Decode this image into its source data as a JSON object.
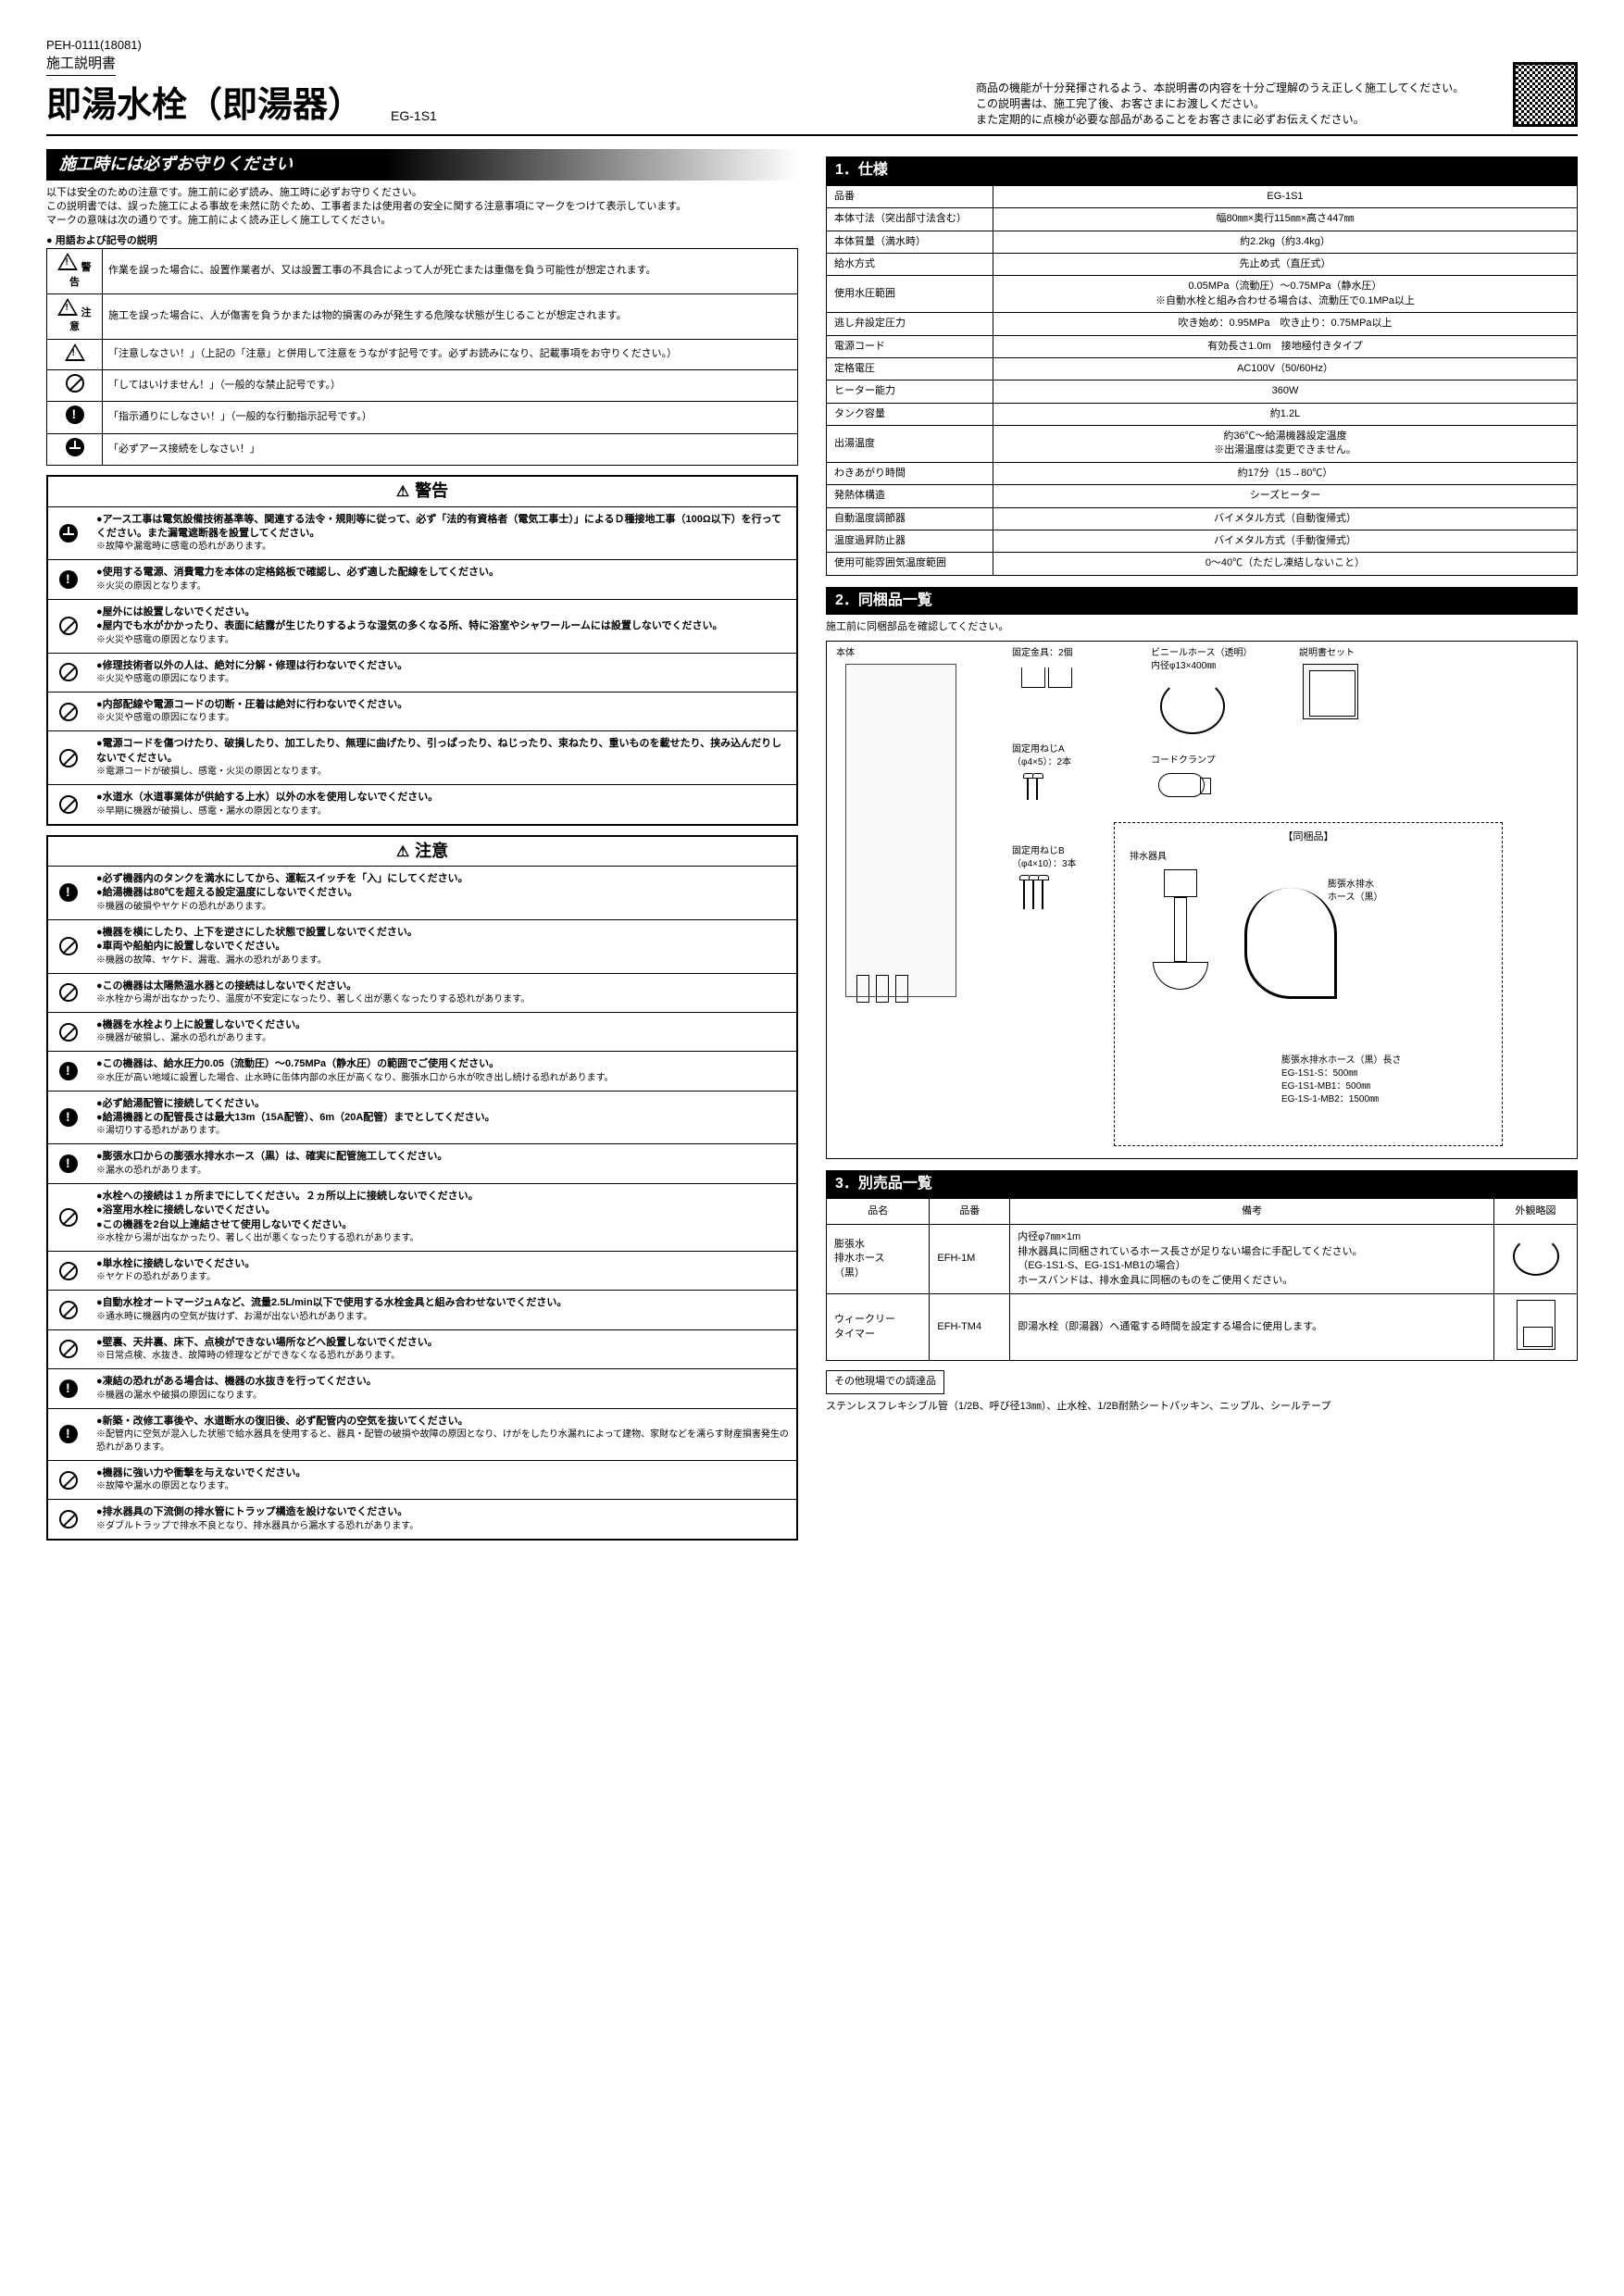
{
  "doc_code": "PEH-0111(18081)",
  "doc_type": "施工説明書",
  "title": "即湯水栓（即湯器）",
  "model": "EG-1S1",
  "header_note_lines": [
    "商品の機能が十分発揮されるよう、本説明書の内容を十分ご理解のうえ正しく施工してください。",
    "この説明書は、施工完了後、お客さまにお渡しください。",
    "また定期的に点検が必要な部品があることをお客さまに必ずお伝えください。"
  ],
  "precautions_heading": "施工時には必ずお守りください",
  "precautions_intro": [
    "以下は安全のための注意です。施工前に必ず読み、施工時に必ずお守りください。",
    "この説明書では、誤った施工による事故を未然に防ぐため、工事者または使用者の安全に関する注意事項にマークをつけて表示しています。",
    "マークの意味は次の通りです。施工前によく読み正しく施工してください。"
  ],
  "symbol_heading": "● 用語および記号の説明",
  "symbols": [
    {
      "icon": "warn-tri",
      "label": "警告",
      "desc": "作業を誤った場合に、設置作業者が、又は設置工事の不具合によって人が死亡または重傷を負う可能性が想定されます。"
    },
    {
      "icon": "caution-tri",
      "label": "注意",
      "desc": "施工を誤った場合に、人が傷害を負うかまたは物的損害のみが発生する危険な状態が生じることが想定されます。"
    },
    {
      "icon": "tri",
      "label": "",
      "desc": "「注意しなさい！」（上記の「注意」と併用して注意をうながす記号です。必ずお読みになり、記載事項をお守りください。）"
    },
    {
      "icon": "slash",
      "label": "",
      "desc": "「してはいけません！」（一般的な禁止記号です。）"
    },
    {
      "icon": "fill",
      "label": "",
      "desc": "「指示通りにしなさい！」（一般的な行動指示記号です。）"
    },
    {
      "icon": "ground",
      "label": "",
      "desc": "「必ずアース接続をしなさい！」"
    }
  ],
  "warning_heading": "警告",
  "warnings": [
    {
      "icon": "ground",
      "bold": "●アース工事は電気設備技術基準等、関連する法令・規則等に従って、必ず「法的有資格者（電気工事士）」によるＤ種接地工事（100Ω以下）を行ってください。また漏電遮断器を設置してください。",
      "sub": "※故障や漏電時に感電の恐れがあります。"
    },
    {
      "icon": "fill",
      "bold": "●使用する電源、消費電力を本体の定格銘板で確認し、必ず適した配線をしてください。",
      "sub": "※火災の原因となります。"
    },
    {
      "icon": "slash",
      "bold": "●屋外には設置しないでください。\n●屋内でも水がかかったり、表面に結露が生じたりするような湿気の多くなる所、特に浴室やシャワールームには設置しないでください。",
      "sub": "※火災や感電の原因となります。"
    },
    {
      "icon": "slash",
      "bold": "●修理技術者以外の人は、絶対に分解・修理は行わないでください。",
      "sub": "※火災や感電の原因になります。"
    },
    {
      "icon": "slash",
      "bold": "●内部配線や電源コードの切断・圧着は絶対に行わないでください。",
      "sub": "※火災や感電の原因になります。"
    },
    {
      "icon": "slash",
      "bold": "●電源コードを傷つけたり、破損したり、加工したり、無理に曲げたり、引っぱったり、ねじったり、束ねたり、重いものを載せたり、挟み込んだりしないでください。",
      "sub": "※電源コードが破損し、感電・火災の原因となります。"
    },
    {
      "icon": "slash",
      "bold": "●水道水（水道事業体が供給する上水）以外の水を使用しないでください。",
      "sub": "※早期に機器が破損し、感電・漏水の原因となります。"
    }
  ],
  "caution_heading": "注意",
  "cautions": [
    {
      "icon": "fill",
      "bold": "●必ず機器内のタンクを満水にしてから、運転スイッチを「入」にしてください。\n●給湯機器は80℃を超える設定温度にしないでください。",
      "sub": "※機器の破損やヤケドの恐れがあります。"
    },
    {
      "icon": "slash",
      "bold": "●機器を横にしたり、上下を逆さにした状態で設置しないでください。\n●車両や船舶内に設置しないでください。",
      "sub": "※機器の故障、ヤケド、漏電、漏水の恐れがあります。"
    },
    {
      "icon": "slash",
      "bold": "●この機器は太陽熱温水器との接続はしないでください。",
      "sub": "※水栓から湯が出なかったり、温度が不安定になったり、著しく出が悪くなったりする恐れがあります。"
    },
    {
      "icon": "slash",
      "bold": "●機器を水栓より上に設置しないでください。",
      "sub": "※機器が破損し、漏水の恐れがあります。"
    },
    {
      "icon": "fill",
      "bold": "●この機器は、給水圧力0.05（流動圧）〜0.75MPa（静水圧）の範囲でご使用ください。",
      "sub": "※水圧が高い地域に設置した場合、止水時に缶体内部の水圧が高くなり、膨張水口から水が吹き出し続ける恐れがあります。"
    },
    {
      "icon": "fill",
      "bold": "●必ず給湯配管に接続してください。\n●給湯機器との配管長さは最大13m（15A配管）、6m（20A配管）までとしてください。",
      "sub": "※湯切りする恐れがあります。"
    },
    {
      "icon": "fill",
      "bold": "●膨張水口からの膨張水排水ホース（黒）は、確実に配管施工してください。",
      "sub": "※漏水の恐れがあります。"
    },
    {
      "icon": "slash",
      "bold": "●水栓への接続は１ヵ所までにしてください。２ヵ所以上に接続しないでください。\n●浴室用水栓に接続しないでください。\n●この機器を2台以上連結させて使用しないでください。",
      "sub": "※水栓から湯が出なかったり、著しく出が悪くなったりする恐れがあります。"
    },
    {
      "icon": "slash",
      "bold": "●単水栓に接続しないでください。",
      "sub": "※ヤケドの恐れがあります。"
    },
    {
      "icon": "slash",
      "bold": "●自動水栓オートマージュAなど、流量2.5L/min以下で使用する水栓金具と組み合わせないでください。",
      "sub": "※通水時に機器内の空気が抜けず、お湯が出ない恐れがあります。"
    },
    {
      "icon": "slash",
      "bold": "●壁裏、天井裏、床下、点検ができない場所などへ設置しないでください。",
      "sub": "※日常点検、水抜き、故障時の修理などができなくなる恐れがあります。"
    },
    {
      "icon": "fill",
      "bold": "●凍結の恐れがある場合は、機器の水抜きを行ってください。",
      "sub": "※機器の漏水や破損の原因になります。"
    },
    {
      "icon": "fill",
      "bold": "●新築・改修工事後や、水道断水の復旧後、必ず配管内の空気を抜いてください。",
      "sub": "※配管内に空気が混入した状態で給水器具を使用すると、器具・配管の破損や故障の原因となり、けがをしたり水漏れによって建物、家財などを濡らす財産損害発生の恐れがあります。"
    },
    {
      "icon": "slash",
      "bold": "●機器に強い力や衝撃を与えないでください。",
      "sub": "※故障や漏水の原因となります。"
    },
    {
      "icon": "slash",
      "bold": "●排水器具の下流側の排水管にトラップ構造を設けないでください。",
      "sub": "※ダブルトラップで排水不良となり、排水器具から漏水する恐れがあります。"
    }
  ],
  "spec_heading": "1．仕様",
  "specs": [
    {
      "k": "品番",
      "v": "EG-1S1"
    },
    {
      "k": "本体寸法（突出部寸法含む）",
      "v": "幅80㎜×奥行115㎜×高さ447㎜"
    },
    {
      "k": "本体質量（満水時）",
      "v": "約2.2kg（約3.4kg）"
    },
    {
      "k": "給水方式",
      "v": "先止め式（直圧式）"
    },
    {
      "k": "使用水圧範囲",
      "v": "0.05MPa（流動圧）〜0.75MPa（静水圧）\n※自動水栓と組み合わせる場合は、流動圧で0.1MPa以上"
    },
    {
      "k": "逃し弁設定圧力",
      "v": "吹き始め：0.95MPa　吹き止り：0.75MPa以上"
    },
    {
      "k": "電源コード",
      "v": "有効長さ1.0m　接地極付きタイプ"
    },
    {
      "k": "定格電圧",
      "v": "AC100V（50/60Hz）"
    },
    {
      "k": "ヒーター能力",
      "v": "360W"
    },
    {
      "k": "タンク容量",
      "v": "約1.2L"
    },
    {
      "k": "出湯温度",
      "v": "約36℃〜給湯機器設定温度\n※出湯温度は変更できません。"
    },
    {
      "k": "わきあがり時間",
      "v": "約17分（15→80℃）"
    },
    {
      "k": "発熱体構造",
      "v": "シーズヒーター"
    },
    {
      "k": "自動温度調節器",
      "v": "バイメタル方式（自動復帰式）"
    },
    {
      "k": "温度過昇防止器",
      "v": "バイメタル方式（手動復帰式）"
    },
    {
      "k": "使用可能雰囲気温度範囲",
      "v": "0〜40℃（ただし凍結しないこと）"
    }
  ],
  "parts_heading": "2．同梱品一覧",
  "parts_note": "施工前に同梱部品を確認してください。",
  "parts_labels": {
    "body": "本体",
    "bracket": "固定金具：2個",
    "hose": "ビニールホース（透明）\n内径φ13×400㎜",
    "docs": "説明書セット",
    "screwA": "固定用ねじA\n（φ4×5）：2本",
    "screwB": "固定用ねじB\n（φ4×10）：3本",
    "clamp": "コードクランプ",
    "included": "【同梱品】",
    "drain": "排水器具",
    "black_hose": "膨張水排水\nホース（黒）",
    "hose_len": "膨張水排水ホース（黒）長さ\nEG-1S1-S：500㎜\nEG-1S1-MB1：500㎜\nEG-1S-1-MB2：1500㎜"
  },
  "accessory_heading": "3．別売品一覧",
  "accessory_cols": [
    "品名",
    "品番",
    "備考",
    "外観略図"
  ],
  "accessories": [
    {
      "name": "膨張水\n排水ホース\n（黒）",
      "pn": "EFH-1M",
      "note": "内径φ7㎜×1m\n排水器具に同梱されているホース長さが足りない場合に手配してください。\n（EG-1S1-S、EG-1S1-MB1の場合）\nホースバンドは、排水金具に同梱のものをご使用ください。",
      "img": "hose"
    },
    {
      "name": "ウィークリー\nタイマー",
      "pn": "EFH-TM4",
      "note": "即湯水栓（即湯器）へ通電する時間を設定する場合に使用します。",
      "img": "timer"
    }
  ],
  "extras_label": "その他現場での調達品",
  "extras_desc": "ステンレスフレキシブル管（1/2B、呼び径13㎜）、止水栓、1/2B耐熱シートパッキン、ニップル、シールテープ"
}
